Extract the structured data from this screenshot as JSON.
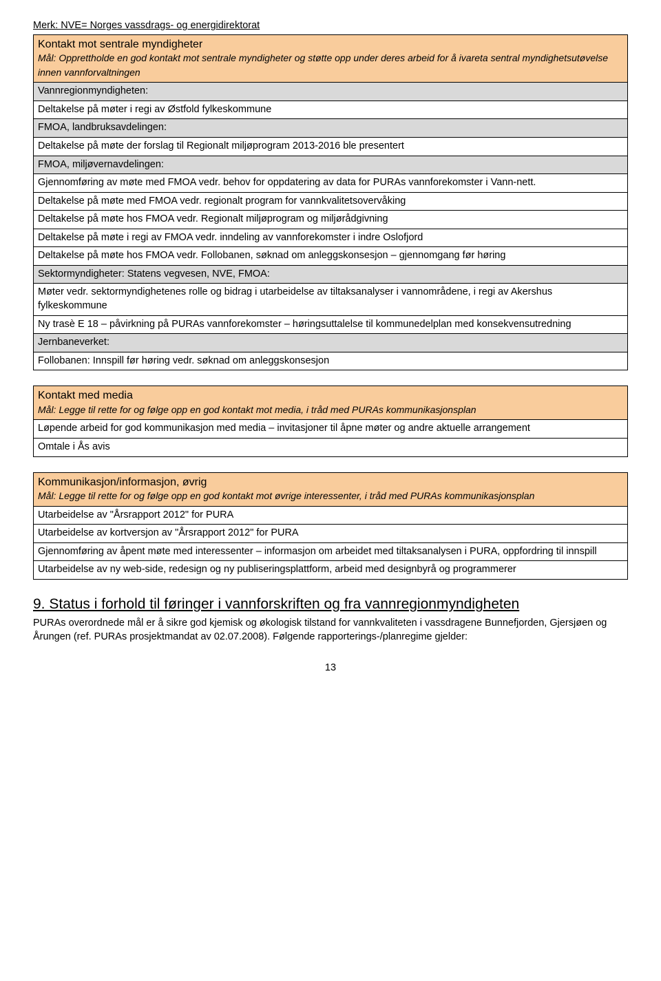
{
  "note": "Merk: NVE= Norges vassdrags- og energidirektorat",
  "table1": {
    "title": "Kontakt mot sentrale myndigheter",
    "goal": "Mål: Opprettholde en god kontakt mot sentrale myndigheter og støtte opp under deres arbeid for å ivareta sentral myndighetsutøvelse innen vannforvaltningen",
    "sub1": "Vannregionmyndigheten:",
    "r1": "Deltakelse på møter i regi av Østfold fylkeskommune",
    "sub2": "FMOA, landbruksavdelingen:",
    "r2": "Deltakelse på møte der forslag til Regionalt miljøprogram 2013-2016 ble presentert",
    "sub3": "FMOA, miljøvernavdelingen:",
    "r3": "Gjennomføring av møte med FMOA vedr. behov for oppdatering av data for PURAs vannforekomster i Vann-nett.",
    "r4": "Deltakelse på møte med FMOA vedr. regionalt program for vannkvalitetsovervåking",
    "r5": "Deltakelse på møte hos FMOA vedr. Regionalt miljøprogram og miljørådgivning",
    "r6": "Deltakelse på møte i regi av FMOA vedr. inndeling av vannforekomster i indre Oslofjord",
    "r7": "Deltakelse på møte hos FMOA vedr. Follobanen, søknad om anleggskonsesjon – gjennomgang før høring",
    "sub4": "Sektormyndigheter: Statens vegvesen, NVE, FMOA:",
    "r8": "Møter vedr. sektormyndighetenes rolle og bidrag i utarbeidelse av tiltaksanalyser i vannområdene, i regi av Akershus fylkeskommune",
    "r9": "Ny trasè E 18 – påvirkning på PURAs vannforekomster – høringsuttalelse til kommunedelplan med konsekvensutredning",
    "sub5": "Jernbaneverket:",
    "r10": "Follobanen: Innspill før høring vedr. søknad om anleggskonsesjon"
  },
  "table2": {
    "title": "Kontakt med media",
    "goal": "Mål: Legge til rette for og følge opp en god kontakt mot media, i tråd med PURAs kommunikasjonsplan",
    "r1": "Løpende arbeid for god kommunikasjon med media – invitasjoner til åpne møter og andre aktuelle arrangement",
    "r2": "Omtale i Ås avis"
  },
  "table3": {
    "title": "Kommunikasjon/informasjon, øvrig",
    "goal": "Mål: Legge til rette for og følge opp en god kontakt mot øvrige interessenter, i tråd med PURAs kommunikasjonsplan",
    "r1": "Utarbeidelse av \"Årsrapport 2012\" for PURA",
    "r2": "Utarbeidelse av kortversjon av \"Årsrapport 2012\" for PURA",
    "r3": "Gjennomføring av åpent møte med interessenter – informasjon om arbeidet med tiltaksanalysen i PURA, oppfordring til innspill",
    "r4": "Utarbeidelse av ny web-side, redesign og ny publiseringsplattform, arbeid med designbyrå og programmerer"
  },
  "section9": {
    "heading": "9. Status i forhold til føringer i vannforskriften og fra vannregionmyndigheten",
    "para": "PURAs overordnede mål er å sikre god kjemisk og økologisk tilstand for vannkvaliteten i vassdragene Bunnefjorden, Gjersjøen og Årungen (ref. PURAs prosjektmandat av 02.07.2008). Følgende rapporterings-/planregime gjelder:"
  },
  "pageNumber": "13"
}
